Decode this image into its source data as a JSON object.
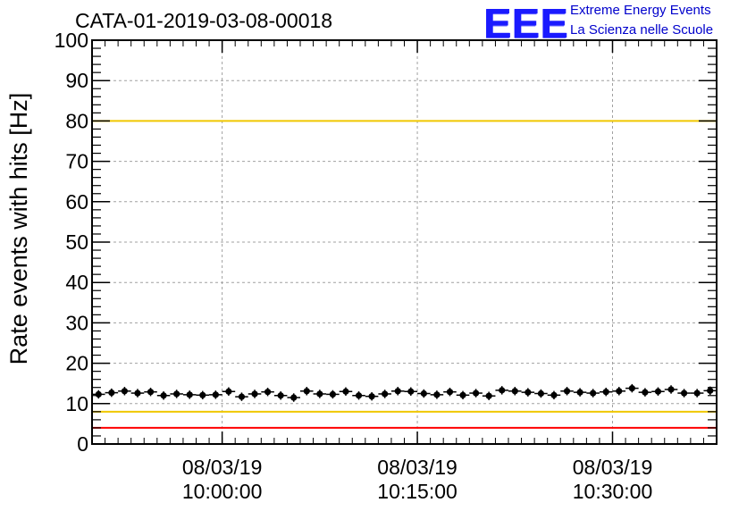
{
  "title": "CATA-01-2019-03-08-00018",
  "logo": {
    "mark": "EEE",
    "line1": "Extreme Energy Events",
    "line2": "La Scienza nelle Scuole",
    "color": "#0000ff"
  },
  "chart_data": {
    "type": "scatter",
    "ylabel": "Rate events with hits [Hz]",
    "xlabel": "",
    "ylim": [
      0,
      100
    ],
    "xlim": [
      "09:50:00",
      "10:38:00"
    ],
    "y_ticks": [
      0,
      10,
      20,
      30,
      40,
      50,
      60,
      70,
      80,
      90,
      100
    ],
    "x_ticks": [
      {
        "date": "08/03/19",
        "time": "10:00:00"
      },
      {
        "date": "08/03/19",
        "time": "10:15:00"
      },
      {
        "date": "08/03/19",
        "time": "10:30:00"
      }
    ],
    "grid": true,
    "reference_lines": [
      {
        "y": 100,
        "color": "#ff0000"
      },
      {
        "y": 80,
        "color": "#f0c800"
      },
      {
        "y": 8,
        "color": "#f0c800"
      },
      {
        "y": 4,
        "color": "#ff0000"
      }
    ],
    "series": [
      {
        "marker_color": "#000000",
        "x": [
          "09:50:30",
          "09:51:30",
          "09:52:30",
          "09:53:30",
          "09:54:30",
          "09:55:30",
          "09:56:30",
          "09:57:30",
          "09:58:30",
          "09:59:30",
          "10:00:30",
          "10:01:30",
          "10:02:30",
          "10:03:30",
          "10:04:30",
          "10:05:30",
          "10:06:30",
          "10:07:30",
          "10:08:30",
          "10:09:30",
          "10:10:30",
          "10:11:30",
          "10:12:30",
          "10:13:30",
          "10:14:30",
          "10:15:30",
          "10:16:30",
          "10:17:30",
          "10:18:30",
          "10:19:30",
          "10:20:30",
          "10:21:30",
          "10:22:30",
          "10:23:30",
          "10:24:30",
          "10:25:30",
          "10:26:30",
          "10:27:30",
          "10:28:30",
          "10:29:30",
          "10:30:30",
          "10:31:30",
          "10:32:30",
          "10:33:30",
          "10:34:30",
          "10:35:30",
          "10:36:30",
          "10:37:30"
        ],
        "y": [
          12.3,
          12.7,
          13.1,
          12.6,
          12.9,
          12.0,
          12.4,
          12.2,
          12.1,
          12.2,
          13.0,
          11.7,
          12.4,
          12.9,
          12.0,
          11.5,
          13.1,
          12.4,
          12.3,
          13.0,
          12.0,
          11.8,
          12.4,
          13.1,
          13.0,
          12.5,
          12.2,
          12.9,
          12.1,
          12.6,
          11.9,
          13.3,
          13.1,
          12.8,
          12.5,
          12.1,
          13.1,
          12.8,
          12.6,
          12.9,
          13.1,
          13.8,
          12.8,
          13.0,
          13.5,
          12.6,
          12.6,
          13.2
        ],
        "y_err": 0.6
      }
    ]
  }
}
